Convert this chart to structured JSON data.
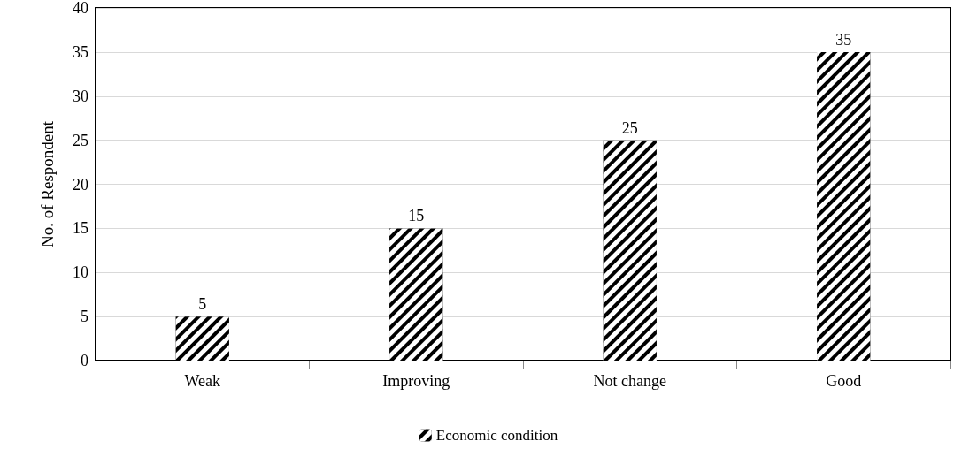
{
  "chart_data": {
    "type": "bar",
    "ylabel": "No. of Respondent",
    "categories": [
      "Weak",
      "Improving",
      "Not change",
      "Good"
    ],
    "series": [
      {
        "name": "Economic condition",
        "color": "#000000",
        "values": [
          5,
          15,
          25,
          35
        ]
      }
    ],
    "ylim": [
      0,
      40
    ],
    "yticks": [
      0,
      5,
      10,
      15,
      20,
      25,
      30,
      35,
      40
    ],
    "grid": "y",
    "legend": "bottom",
    "data_labels": true
  }
}
